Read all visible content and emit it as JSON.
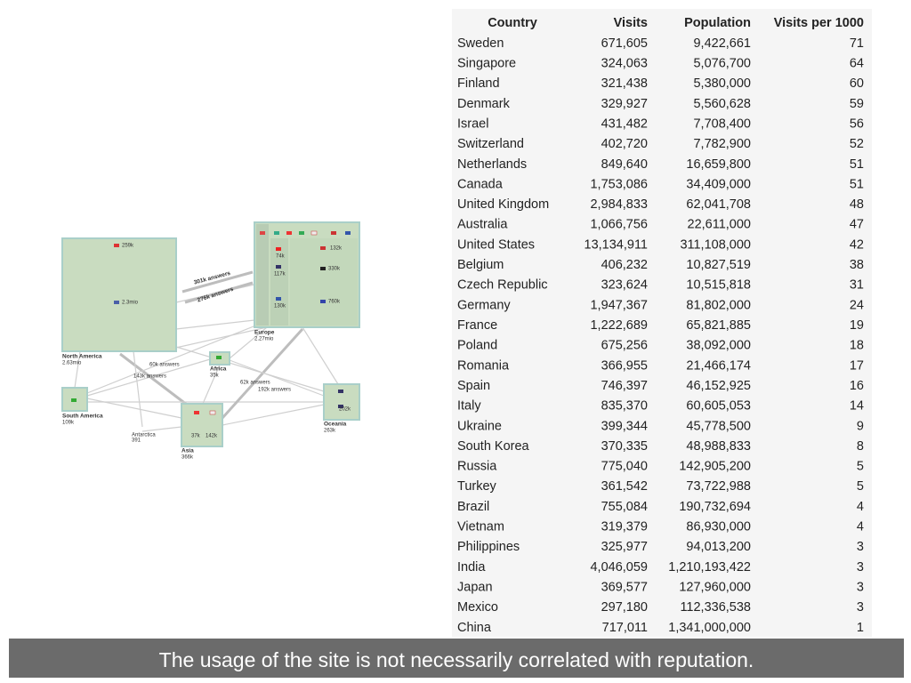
{
  "diagram": {
    "nodes": [
      {
        "name": "North America",
        "total": "2.63mio",
        "items": [
          "259k",
          "2.3mio"
        ]
      },
      {
        "name": "Europe",
        "total": "2.27mio",
        "items": [
          "132k",
          "74k",
          "330k",
          "117k",
          "130k",
          "760k"
        ]
      },
      {
        "name": "Africa",
        "total": "35k"
      },
      {
        "name": "South America",
        "total": "109k"
      },
      {
        "name": "Antarctica",
        "total": "391"
      },
      {
        "name": "Asia",
        "total": "366k",
        "items": [
          "37k",
          "142k"
        ]
      },
      {
        "name": "Oceania",
        "total": "263k",
        "items": [
          "202k"
        ]
      }
    ],
    "edges": [
      "301k answers",
      "276k answers",
      "60k answers",
      "143k answers",
      "62k answers",
      "192k answers"
    ]
  },
  "table": {
    "header": [
      "Country",
      "Visits",
      "Population",
      "Visits per 1000"
    ],
    "rows": [
      [
        "Sweden",
        "671,605",
        "9,422,661",
        "71"
      ],
      [
        "Singapore",
        "324,063",
        "5,076,700",
        "64"
      ],
      [
        "Finland",
        "321,438",
        "5,380,000",
        "60"
      ],
      [
        "Denmark",
        "329,927",
        "5,560,628",
        "59"
      ],
      [
        "Israel",
        "431,482",
        "7,708,400",
        "56"
      ],
      [
        "Switzerland",
        "402,720",
        "7,782,900",
        "52"
      ],
      [
        "Netherlands",
        "849,640",
        "16,659,800",
        "51"
      ],
      [
        "Canada",
        "1,753,086",
        "34,409,000",
        "51"
      ],
      [
        "United Kingdom",
        "2,984,833",
        "62,041,708",
        "48"
      ],
      [
        "Australia",
        "1,066,756",
        "22,611,000",
        "47"
      ],
      [
        "United States",
        "13,134,911",
        "311,108,000",
        "42"
      ],
      [
        "Belgium",
        "406,232",
        "10,827,519",
        "38"
      ],
      [
        "Czech Republic",
        "323,624",
        "10,515,818",
        "31"
      ],
      [
        "Germany",
        "1,947,367",
        "81,802,000",
        "24"
      ],
      [
        "France",
        "1,222,689",
        "65,821,885",
        "19"
      ],
      [
        "Poland",
        "675,256",
        "38,092,000",
        "18"
      ],
      [
        "Romania",
        "366,955",
        "21,466,174",
        "17"
      ],
      [
        "Spain",
        "746,397",
        "46,152,925",
        "16"
      ],
      [
        "Italy",
        "835,370",
        "60,605,053",
        "14"
      ],
      [
        "Ukraine",
        "399,344",
        "45,778,500",
        "9"
      ],
      [
        "South Korea",
        "370,335",
        "48,988,833",
        "8"
      ],
      [
        "Russia",
        "775,040",
        "142,905,200",
        "5"
      ],
      [
        "Turkey",
        "361,542",
        "73,722,988",
        "5"
      ],
      [
        "Brazil",
        "755,084",
        "190,732,694",
        "4"
      ],
      [
        "Vietnam",
        "319,379",
        "86,930,000",
        "4"
      ],
      [
        "Philippines",
        "325,977",
        "94,013,200",
        "3"
      ],
      [
        "India",
        "4,046,059",
        "1,210,193,422",
        "3"
      ],
      [
        "Japan",
        "369,577",
        "127,960,000",
        "3"
      ],
      [
        "Mexico",
        "297,180",
        "112,336,538",
        "3"
      ],
      [
        "China",
        "717,011",
        "1,341,000,000",
        "1"
      ]
    ]
  },
  "caption": "The usage of the site is not necessarily correlated with reputation."
}
